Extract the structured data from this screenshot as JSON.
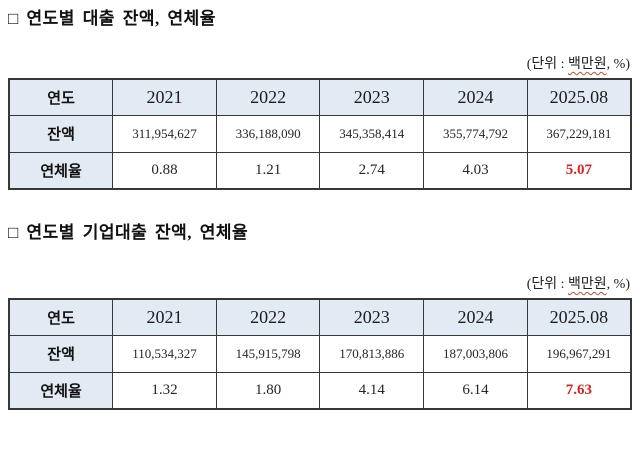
{
  "colors": {
    "header_fill": "#e2eaf4",
    "table_border": "#383838",
    "highlight_red": "#e02020",
    "wavy_underline": "#cc4b2a"
  },
  "sections": [
    {
      "heading": "□ 연도별 대출 잔액, 연체율",
      "unit": {
        "prefix": "(단위 : ",
        "term": "백만원",
        "suffix": ", %)"
      },
      "table": {
        "header": [
          "연도",
          "2021",
          "2022",
          "2023",
          "2024",
          "2025.08"
        ],
        "rows": [
          {
            "label": "잔액",
            "values": [
              "311,954,627",
              "336,188,090",
              "345,358,414",
              "355,774,792",
              "367,229,181"
            ]
          },
          {
            "label": "연체율",
            "values": [
              "0.88",
              "1.21",
              "2.74",
              "4.03",
              "5.07"
            ]
          }
        ]
      }
    },
    {
      "heading": "□ 연도별 기업대출 잔액, 연체율",
      "unit": {
        "prefix": "(단위 : ",
        "term": "백만원",
        "suffix": ", %)"
      },
      "table": {
        "header": [
          "연도",
          "2021",
          "2022",
          "2023",
          "2024",
          "2025.08"
        ],
        "rows": [
          {
            "label": "잔액",
            "values": [
              "110,534,327",
              "145,915,798",
              "170,813,886",
              "187,003,806",
              "196,967,291"
            ]
          },
          {
            "label": "연체율",
            "values": [
              "1.32",
              "1.80",
              "4.14",
              "6.14",
              "7.63"
            ]
          }
        ]
      }
    }
  ]
}
